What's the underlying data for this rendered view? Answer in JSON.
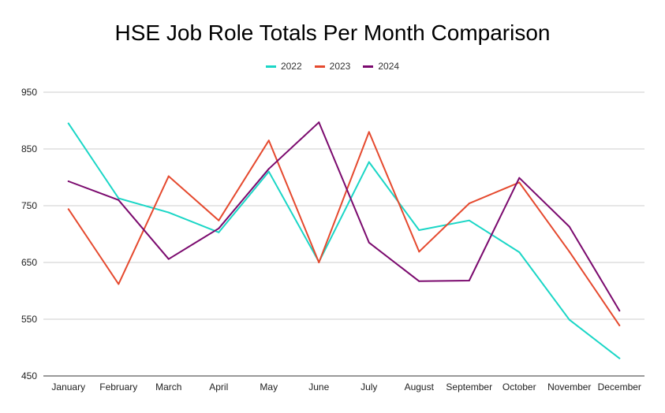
{
  "chart_data": {
    "type": "line",
    "title": "HSE Job Role Totals Per Month Comparison",
    "xlabel": "",
    "ylabel": "",
    "categories": [
      "January",
      "February",
      "March",
      "April",
      "May",
      "June",
      "July",
      "August",
      "September",
      "October",
      "November",
      "December"
    ],
    "ylim": [
      450,
      950
    ],
    "yticks": [
      950,
      850,
      750,
      650,
      550,
      450
    ],
    "grid": true,
    "legend_position": "top-center",
    "series": [
      {
        "name": "2022",
        "color": "#1ad6c6",
        "values": [
          895,
          763,
          738,
          703,
          810,
          651,
          827,
          707,
          724,
          668,
          549,
          481
        ]
      },
      {
        "name": "2023",
        "color": "#e5492e",
        "values": [
          744,
          612,
          802,
          724,
          865,
          650,
          880,
          669,
          754,
          791,
          669,
          539
        ]
      },
      {
        "name": "2024",
        "color": "#7b0a6e",
        "values": [
          793,
          760,
          656,
          710,
          815,
          897,
          685,
          617,
          618,
          799,
          713,
          565
        ]
      }
    ]
  }
}
